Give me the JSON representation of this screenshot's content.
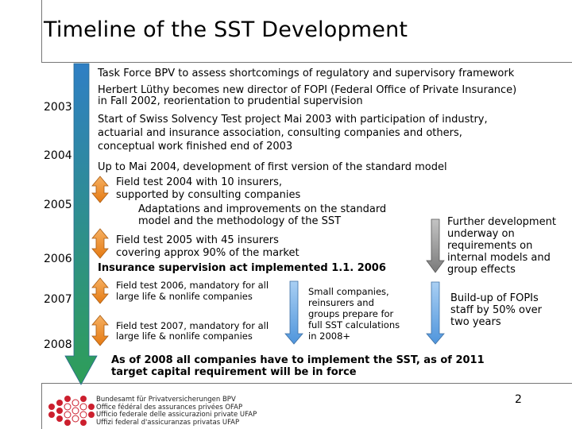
{
  "slide": {
    "title": "Timeline of the SST Development",
    "page_number": "2"
  },
  "years": [
    "2003",
    "2004",
    "2005",
    "2006",
    "2007",
    "2008"
  ],
  "events": {
    "task_force": "Task Force BPV to assess shortcomings of regulatory and supervisory framework",
    "luthy_1": "Herbert Lüthy becomes new director of FOPI (Federal Office of Private Insurance)",
    "luthy_2": "in Fall 2002, reorientation to prudential supervision",
    "start_1": "Start of Swiss Solvency Test project Mai 2003 with participation of industry,",
    "start_2": "actuarial and insurance association, consulting companies and others,",
    "start_3": "conceptual work finished end of 2003",
    "model": "Up to Mai 2004, development of first version of the standard model",
    "ft2004_1": "Field test 2004 with 10 insurers,",
    "ft2004_2": "supported by consulting companies",
    "adapt_1": "Adaptations and improvements on the standard",
    "adapt_2": "model and the methodology of the SST",
    "ft2005_1": "Field test 2005 with 45 insurers",
    "ft2005_2": "covering approx 90% of the market",
    "act": "Insurance supervision act implemented 1.1. 2006",
    "ft2006_1": "Field test 2006, mandatory for all",
    "ft2006_2": "large life & nonlife companies",
    "ft2007_1": "Field test 2007, mandatory for all",
    "ft2007_2": "large life & nonlife companies",
    "small_1": "Small companies,",
    "small_2": "reinsurers and",
    "small_3": "groups prepare for",
    "small_4": "full SST calculations",
    "small_5": "in 2008+",
    "further_1": "Further development",
    "further_2": "underway on",
    "further_3": "requirements on",
    "further_4": "internal models and",
    "further_5": "group effects",
    "buildup_1": "Build-up of FOPIs",
    "buildup_2": "staff by 50% over",
    "buildup_3": "two years",
    "final_1": "As of 2008 all companies have to implement the SST, as of 2011",
    "final_2": "target capital requirement will be in force"
  },
  "footer": {
    "org_de": "Bundesamt für Privatversicherungen BPV",
    "org_fr": "Office fédéral des assurances privées OFAP",
    "org_it": "Ufficio federale delle assicurazioni private UFAP",
    "org_rm": "Uffizi federal d'assicuranzas privatas UFAP"
  },
  "colors": {
    "timeline_arrow_top": "#2f7fc4",
    "timeline_arrow_bottom": "#2e9e58",
    "orange_arrow": "#f08a24",
    "blue_arrow": "#6aa9e6",
    "grey_arrow": "#8c8c8c",
    "logo_red": "#cc1f2e"
  }
}
